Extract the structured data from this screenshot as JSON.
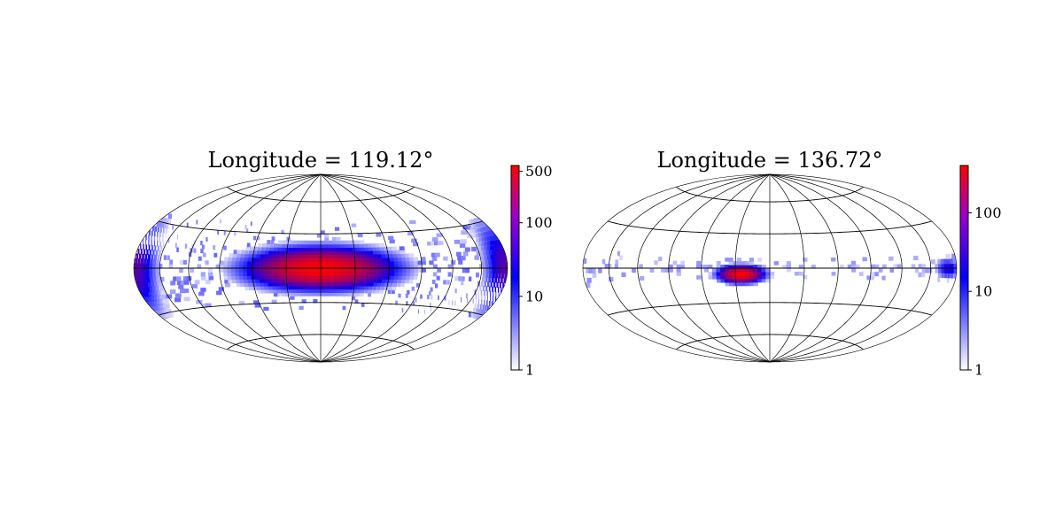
{
  "chart_data": [
    {
      "type": "heatmap",
      "projection": "hammer",
      "title": "Longitude = 119.12°",
      "colorbar": {
        "scale": "log",
        "range": [
          1,
          600
        ],
        "ticks": [
          1,
          10,
          100,
          500
        ],
        "tick_labels": [
          "1",
          "10",
          "100",
          "500"
        ],
        "colormap": [
          "#ffffff",
          "#0000ff",
          "#ff0000"
        ]
      },
      "grid": true,
      "graticule": {
        "meridian_step_deg": 30,
        "parallel_step_deg": 30
      },
      "clusters": [
        {
          "lon": 0,
          "lat": 0,
          "sigma_lon": 25,
          "sigma_lat": 7,
          "peak": 600
        },
        {
          "lon": 178,
          "lat": 0,
          "sigma_lon": 10,
          "sigma_lat": 12,
          "peak": 60
        },
        {
          "lon": -178,
          "lat": 0,
          "sigma_lon": 10,
          "sigma_lat": 12,
          "peak": 60
        }
      ],
      "scatter_band": {
        "lat_extent": 40,
        "count_range": [
          1,
          6
        ]
      }
    },
    {
      "type": "heatmap",
      "projection": "hammer",
      "title": "Longitude = 136.72°",
      "colorbar": {
        "scale": "log",
        "range": [
          1,
          400
        ],
        "ticks": [
          1,
          10,
          100
        ],
        "tick_labels": [
          "1",
          "10",
          "100"
        ],
        "colormap": [
          "#ffffff",
          "#0000ff",
          "#ff0000"
        ]
      },
      "grid": true,
      "graticule": {
        "meridian_step_deg": 30,
        "parallel_step_deg": 30
      },
      "clusters": [
        {
          "lon": -25,
          "lat": -5,
          "sigma_lon": 8,
          "sigma_lat": 3,
          "peak": 400
        },
        {
          "lon": 170,
          "lat": 0,
          "sigma_lon": 6,
          "sigma_lat": 3,
          "peak": 25
        }
      ],
      "scatter_band": {
        "lat_extent": 12,
        "count_range": [
          1,
          3
        ]
      }
    }
  ]
}
